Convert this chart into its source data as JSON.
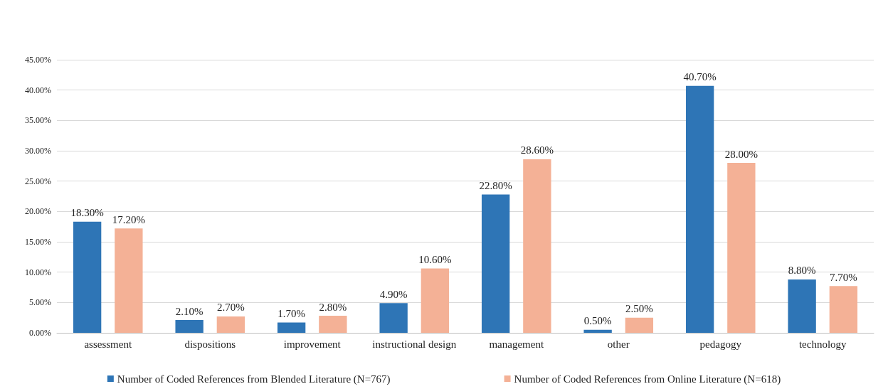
{
  "chart_data": {
    "type": "bar",
    "categories": [
      "assessment",
      "dispositions",
      "improvement",
      "instructional design",
      "management",
      "other",
      "pedagogy",
      "technology"
    ],
    "series": [
      {
        "name": "Number of Coded References from Blended Literature (N=767)",
        "color": "#2e75b6",
        "values": [
          18.3,
          2.1,
          1.7,
          4.9,
          22.8,
          0.5,
          40.7,
          8.8
        ],
        "value_labels": [
          "18.30%",
          "2.10%",
          "1.70%",
          "4.90%",
          "22.80%",
          "0.50%",
          "40.70%",
          "8.80%"
        ]
      },
      {
        "name": "Number of Coded References from Online Literature (N=618)",
        "color": "#f4b196",
        "values": [
          17.2,
          2.7,
          2.8,
          10.6,
          28.6,
          2.5,
          28.0,
          7.7
        ],
        "value_labels": [
          "17.20%",
          "2.70%",
          "2.80%",
          "10.60%",
          "28.60%",
          "2.50%",
          "28.00%",
          "7.70%"
        ]
      }
    ],
    "ylim": [
      0,
      45
    ],
    "yticks": [
      {
        "value": 0,
        "label": "0.00%"
      },
      {
        "value": 5,
        "label": "5.00%"
      },
      {
        "value": 10,
        "label": "10.00%"
      },
      {
        "value": 15,
        "label": "15.00%"
      },
      {
        "value": 20,
        "label": "20.00%"
      },
      {
        "value": 25,
        "label": "25.00%"
      },
      {
        "value": 30,
        "label": "30.00%"
      },
      {
        "value": 35,
        "label": "35.00%"
      },
      {
        "value": 40,
        "label": "40.00%"
      },
      {
        "value": 45,
        "label": "45.00%"
      }
    ],
    "grid": "y",
    "legend": "bottom"
  }
}
